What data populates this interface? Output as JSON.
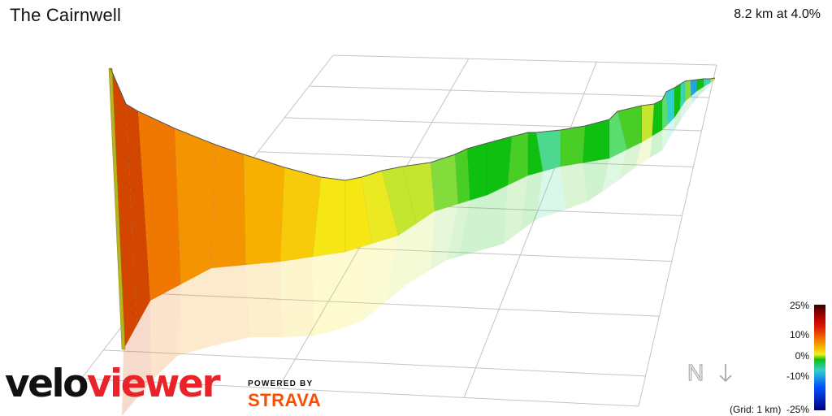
{
  "header": {
    "title": "The Cairnwell",
    "summary": "8.2 km at 4.0%"
  },
  "branding": {
    "velo": "velo",
    "viewer": "viewer",
    "powered_by": "POWERED BY",
    "strava": "STRAVA"
  },
  "compass": {
    "label": "N",
    "icon": "down-arrow-icon"
  },
  "grid_note": "(Grid: 1 km)",
  "colors": {
    "grid": "#c4c4c4",
    "brand_red": "#e8242a",
    "strava_orange": "#fc4c02"
  },
  "chart_data": {
    "type": "area",
    "title": "The Cairnwell",
    "distance_km": 8.2,
    "average_gradient_pct": 4.0,
    "grid_km": 1,
    "legend": {
      "ticks": [
        "25%",
        "10%",
        "0%",
        "-10%",
        "-25%"
      ],
      "colors": [
        "#3a0000",
        "#b00000",
        "#e02000",
        "#f07000",
        "#f8b000",
        "#f0f020",
        "#10c010",
        "#30d0d0",
        "#0050ff",
        "#000080"
      ]
    },
    "series": [
      {
        "x": [
          0.0,
          0.15,
          0.3,
          0.55,
          0.8,
          1.05,
          1.3,
          1.55,
          1.8,
          2.05,
          2.3,
          2.55,
          2.8,
          3.0,
          3.1,
          3.25,
          3.5,
          3.75,
          4.0,
          4.3,
          4.55,
          4.85,
          5.15,
          5.4,
          5.7,
          6.0,
          6.25,
          6.5,
          6.8,
          7.05,
          7.3,
          7.55,
          7.8,
          8.05,
          8.2
        ],
        "gradient_pct": [
          12,
          12,
          9,
          8,
          8,
          7,
          6,
          5,
          5,
          4,
          3,
          3,
          2,
          1,
          0,
          0,
          1,
          0,
          -2,
          1,
          0,
          -1,
          1,
          3,
          0,
          -1,
          -4,
          0,
          -3,
          2,
          -6,
          0,
          -3,
          3,
          2
        ]
      }
    ]
  }
}
